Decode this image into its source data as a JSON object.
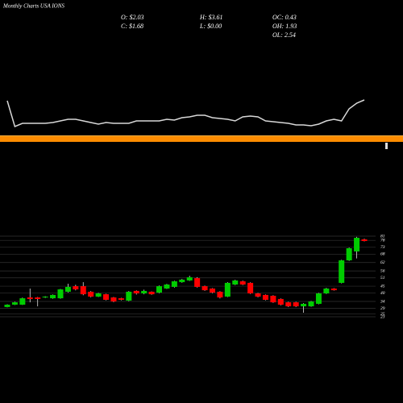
{
  "title": "Monthly Charts USA IONS",
  "stats": [
    "O: $2.03",
    "H: $3.61",
    "OC: 0.43",
    "C: $1.68",
    "L: $0.00",
    "OH: 1.93",
    "OL: 2.54"
  ],
  "chart_data": [
    {
      "type": "line",
      "color": "#d8d8d8",
      "ylim": [
        0,
        40
      ],
      "values": [
        35,
        3,
        7,
        7,
        7,
        7,
        8,
        10,
        12,
        12,
        10,
        8,
        6,
        8,
        7,
        7,
        7,
        10,
        10,
        10,
        10,
        12,
        11,
        14,
        15,
        17,
        17,
        14,
        13,
        12,
        10,
        15,
        16,
        15,
        10,
        9,
        8,
        7,
        5,
        5,
        4,
        6,
        10,
        12,
        10,
        25,
        32,
        36
      ]
    },
    {
      "type": "candlestick",
      "up_color": "#00cc00",
      "down_color": "#ff0000",
      "grid": true,
      "ylim": [
        23,
        81
      ],
      "yticks": [
        81,
        78,
        73,
        68,
        62,
        56,
        51,
        45,
        40,
        34,
        29,
        25,
        23
      ],
      "open": [
        30.0,
        31.7,
        31.7,
        36.9,
        36.9,
        36.9,
        36.3,
        36.3,
        41.0,
        45.0,
        45.0,
        41.0,
        37.5,
        39.2,
        36.9,
        36.3,
        34.6,
        41.6,
        39.8,
        41.0,
        40.4,
        43.3,
        44.5,
        47.9,
        49.1,
        50.8,
        45.0,
        43.3,
        41.0,
        37.5,
        46.2,
        48.5,
        47.4,
        39.8,
        38.7,
        38.1,
        35.8,
        33.4,
        33.4,
        30.5,
        30.5,
        32.3,
        39.8,
        43.3,
        47.4,
        63.6,
        70.0,
        78.7
      ],
      "high": [
        32.0,
        33.8,
        36.8,
        43.3,
        37.2,
        37.8,
        39.0,
        43.0,
        46.8,
        46.0,
        47.9,
        41.5,
        40.2,
        39.5,
        37.2,
        36.6,
        41.5,
        42.0,
        42.5,
        41.3,
        45.5,
        46.6,
        48.9,
        50.2,
        52.5,
        51.5,
        45.4,
        43.6,
        41.4,
        47.9,
        49.6,
        49.0,
        47.8,
        40.2,
        39.0,
        38.5,
        36.2,
        33.8,
        33.8,
        32.8,
        34.4,
        40.2,
        43.8,
        43.6,
        64.0,
        72.8,
        80.5,
        79.2
      ],
      "low": [
        29.8,
        31.5,
        31.5,
        33.4,
        30.5,
        36.5,
        36.0,
        36.0,
        40.5,
        42.0,
        38.5,
        37.0,
        37.2,
        34.8,
        33.5,
        34.8,
        34.2,
        39.0,
        39.2,
        38.8,
        40.0,
        43.0,
        44.0,
        47.5,
        48.8,
        44.0,
        41.6,
        40.0,
        36.2,
        37.2,
        45.8,
        45.8,
        39.4,
        37.0,
        34.8,
        33.0,
        31.2,
        30.0,
        30.0,
        25.9,
        30.2,
        32.0,
        39.4,
        41.8,
        47.0,
        63.2,
        65.0,
        77.2
      ],
      "close": [
        31.7,
        33.4,
        36.3,
        35.8,
        35.8,
        37.5,
        38.7,
        42.7,
        44.5,
        42.7,
        39.2,
        37.5,
        39.8,
        35.2,
        34.0,
        35.2,
        41.0,
        39.8,
        41.6,
        39.2,
        45.0,
        46.2,
        48.5,
        49.7,
        51.4,
        44.5,
        42.1,
        40.4,
        36.9,
        47.4,
        49.1,
        46.2,
        39.8,
        37.5,
        35.2,
        33.4,
        31.7,
        30.5,
        30.5,
        32.3,
        34.0,
        39.8,
        43.3,
        42.1,
        63.6,
        72.3,
        79.8,
        77.5
      ]
    }
  ]
}
